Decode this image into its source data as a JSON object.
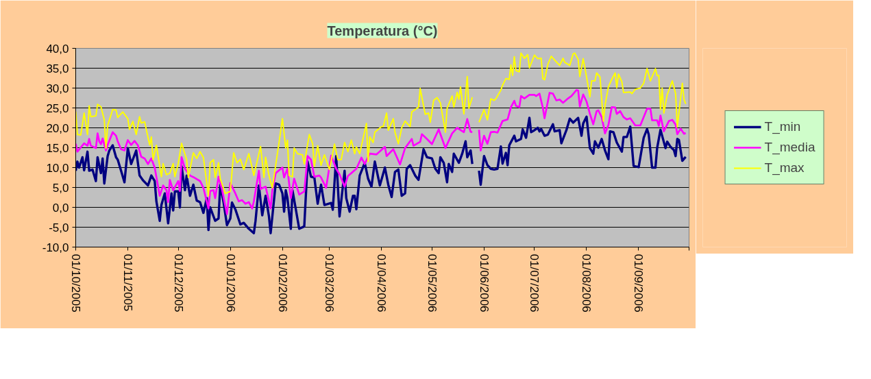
{
  "chart_data": {
    "type": "line",
    "title": "Temperatura (°C)",
    "legend": "right",
    "grid": "y",
    "xlim": [
      "2005-10-01",
      "2006-10-01"
    ],
    "xticks": [
      {
        "value": "2005-10-01",
        "label": "01/10/2005"
      },
      {
        "value": "2005-11-01",
        "label": "01/11/2005"
      },
      {
        "value": "2005-12-01",
        "label": "01/12/2005"
      },
      {
        "value": "2006-01-01",
        "label": "01/01/2006"
      },
      {
        "value": "2006-02-01",
        "label": "01/02/2006"
      },
      {
        "value": "2006-03-01",
        "label": "01/03/2006"
      },
      {
        "value": "2006-04-01",
        "label": "01/04/2006"
      },
      {
        "value": "2006-05-01",
        "label": "01/05/2006"
      },
      {
        "value": "2006-06-01",
        "label": "01/06/2006"
      },
      {
        "value": "2006-07-01",
        "label": "01/07/2006"
      },
      {
        "value": "2006-08-01",
        "label": "01/08/2006"
      },
      {
        "value": "2006-09-01",
        "label": "01/09/2006"
      },
      {
        "value": "2006-10-01",
        "label": null
      }
    ],
    "ylim": [
      -10,
      40
    ],
    "yticks": [
      {
        "value": -10,
        "label": "-10,0"
      },
      {
        "value": -5,
        "label": "-5,0"
      },
      {
        "value": 0,
        "label": "0,0"
      },
      {
        "value": 5,
        "label": "5,0"
      },
      {
        "value": 10,
        "label": "10,0"
      },
      {
        "value": 15,
        "label": "15,0"
      },
      {
        "value": 20,
        "label": "20,0"
      },
      {
        "value": 25,
        "label": "25,0"
      },
      {
        "value": 30,
        "label": "30,0"
      },
      {
        "value": 35,
        "label": "35,0"
      },
      {
        "value": 40,
        "label": "40,0"
      }
    ],
    "series": [
      {
        "name": "T_min",
        "color": "#000080",
        "x": [
          "2005-10-01",
          "2005-10-02",
          "2005-10-03",
          "2005-10-05",
          "2005-10-06",
          "2005-10-08",
          "2005-10-09",
          "2005-10-11",
          "2005-10-13",
          "2005-10-14",
          "2005-10-16",
          "2005-10-17",
          "2005-10-18",
          "2005-10-20",
          "2005-10-21",
          "2005-10-23",
          "2005-10-25",
          "2005-10-26",
          "2005-10-28",
          "2005-10-30",
          "2005-11-01",
          "2005-11-03",
          "2005-11-06",
          "2005-11-08",
          "2005-11-10",
          "2005-11-13",
          "2005-11-15",
          "2005-11-17",
          "2005-11-18",
          "2005-11-20",
          "2005-11-21",
          "2005-11-23",
          "2005-11-25",
          "2005-11-27",
          "2005-11-28",
          "2005-11-29",
          "2005-12-01",
          "2005-12-02",
          "2005-12-03",
          "2005-12-05",
          "2005-12-06",
          "2005-12-08",
          "2005-12-10",
          "2005-12-12",
          "2005-12-14",
          "2005-12-16",
          "2005-12-18",
          "2005-12-19",
          "2005-12-20",
          "2005-12-23",
          "2005-12-25",
          "2005-12-26",
          "2005-12-28",
          "2005-12-30",
          "2006-01-01",
          "2006-01-02",
          "2006-01-04",
          "2006-01-07",
          "2006-01-09",
          "2006-01-12",
          "2006-01-15",
          "2006-01-16",
          "2006-01-18",
          "2006-01-20",
          "2006-01-22",
          "2006-01-24",
          "2006-01-25",
          "2006-01-28",
          "2006-01-30",
          "2006-02-01",
          "2006-02-02",
          "2006-02-03",
          "2006-02-04",
          "2006-02-06",
          "2006-02-07",
          "2006-02-11",
          "2006-02-14",
          "2006-02-16",
          "2006-02-18",
          "2006-02-20",
          "2006-02-22",
          "2006-02-24",
          "2006-02-26",
          "2006-03-02",
          "2006-03-03",
          "2006-03-05",
          "2006-03-07",
          "2006-03-10",
          "2006-03-11",
          "2006-03-13",
          "2006-03-15",
          "2006-03-16",
          "2006-03-17",
          "2006-03-19",
          "2006-03-22",
          "2006-03-24",
          "2006-03-26",
          "2006-03-28",
          "2006-03-31",
          "2006-04-03",
          "2006-04-05",
          "2006-04-07",
          "2006-04-09",
          "2006-04-11",
          "2006-04-13",
          "2006-04-15",
          "2006-04-16",
          "2006-04-18",
          "2006-04-21",
          "2006-04-23",
          "2006-04-26",
          "2006-04-28",
          "2006-05-01",
          "2006-05-03",
          "2006-05-05",
          "2006-05-06",
          "2006-05-08",
          "2006-05-10",
          "2006-05-11",
          "2006-05-13",
          "2006-05-14",
          "2006-05-17",
          "2006-05-19",
          "2006-05-21",
          "2006-05-22",
          "2006-05-24",
          "2006-05-25",
          "2006-05-27",
          "2006-05-29",
          "2006-05-30",
          "2006-06-01",
          "2006-06-03",
          "2006-06-05",
          "2006-06-07",
          "2006-06-09",
          "2006-06-11",
          "2006-06-12",
          "2006-06-14",
          "2006-06-15",
          "2006-06-16",
          "2006-06-19",
          "2006-06-20",
          "2006-06-23",
          "2006-06-24",
          "2006-06-26",
          "2006-06-28",
          "2006-06-29",
          "2006-07-01",
          "2006-07-03",
          "2006-07-04",
          "2006-07-05",
          "2006-07-07",
          "2006-07-09",
          "2006-07-12",
          "2006-07-13",
          "2006-07-16",
          "2006-07-17",
          "2006-07-20",
          "2006-07-22",
          "2006-07-24",
          "2006-07-27",
          "2006-07-29",
          "2006-07-30",
          "2006-08-01",
          "2006-08-03",
          "2006-08-05",
          "2006-08-06",
          "2006-08-08",
          "2006-08-10",
          "2006-08-12",
          "2006-08-14",
          "2006-08-15",
          "2006-08-17",
          "2006-08-19",
          "2006-08-22",
          "2006-08-23",
          "2006-08-25",
          "2006-08-27",
          "2006-08-29",
          "2006-09-01",
          "2006-09-04",
          "2006-09-06",
          "2006-09-07",
          "2006-09-09",
          "2006-09-11",
          "2006-09-12",
          "2006-09-14",
          "2006-09-17",
          "2006-09-18",
          "2006-09-20",
          "2006-09-22",
          "2006-09-23",
          "2006-09-24",
          "2006-09-25",
          "2006-09-27",
          "2006-09-29"
        ],
        "values": [
          9.2,
          11.5,
          10,
          12.6,
          9.3,
          14,
          9.2,
          9.5,
          6.6,
          12.6,
          8.6,
          12.3,
          6,
          12.9,
          14.3,
          15.6,
          12.6,
          12,
          9.2,
          6.3,
          14.9,
          10.9,
          14.3,
          8,
          6.8,
          5.5,
          8,
          6.6,
          1.5,
          -3.4,
          0.6,
          3.5,
          -4,
          3.5,
          -0.8,
          4,
          4,
          0,
          10.3,
          4.3,
          8,
          2.9,
          5.7,
          1.7,
          1.3,
          -1.4,
          2.3,
          -5.7,
          0,
          -3.4,
          -2.8,
          5.7,
          1.2,
          -4.5,
          -2.8,
          1.2,
          -0.5,
          -4.3,
          -3.9,
          -5.4,
          -6.5,
          -3.4,
          5.5,
          -2,
          2.9,
          -2.3,
          -6.5,
          6,
          5.7,
          3.5,
          -1.1,
          4.3,
          2.3,
          -5.4,
          4.3,
          -5.4,
          -4.8,
          11.5,
          7.7,
          7.5,
          0.9,
          5.7,
          0.6,
          1.1,
          -0.6,
          12.9,
          -2.3,
          9.2,
          2.3,
          -1.1,
          2.9,
          2.9,
          -0.5,
          8,
          11.2,
          7.2,
          5.2,
          11.5,
          5.5,
          10,
          5.7,
          2.6,
          8.9,
          9.5,
          2.9,
          3.5,
          9.7,
          10.6,
          8,
          6.9,
          14.6,
          12.6,
          12.3,
          9.7,
          8.6,
          12.6,
          11.2,
          6.3,
          10.9,
          8.9,
          13.5,
          11.2,
          13.5,
          16.6,
          12.6,
          14.3,
          10.9,
          null,
          9.2,
          5.7,
          12.9,
          10.6,
          9.7,
          9.5,
          9.7,
          15.3,
          11,
          13.7,
          10.6,
          15.6,
          18,
          16.6,
          17.2,
          19.6,
          17.5,
          22.5,
          18.9,
          19.4,
          20,
          19.1,
          19.7,
          18,
          18.3,
          20.9,
          19.1,
          19.4,
          16.1,
          19.4,
          22.3,
          21.3,
          22.5,
          18,
          21.1,
          22.8,
          14.9,
          13.5,
          16.6,
          15,
          17.2,
          14.3,
          12.1,
          19.1,
          18.9,
          16.3,
          14,
          17.7,
          17.7,
          20.3,
          10.4,
          10.1,
          17.5,
          19.7,
          18.3,
          10,
          10,
          14.9,
          19.5,
          14.9,
          16.5,
          15.2,
          14.4,
          12.9,
          17.2,
          16.9,
          11.7,
          12.7
        ]
      },
      {
        "name": "T_media",
        "color": "#ff00ff",
        "x": [
          "2005-10-01",
          "2005-10-02",
          "2005-10-06",
          "2005-10-08",
          "2005-10-09",
          "2005-10-10",
          "2005-10-13",
          "2005-10-14",
          "2005-10-15",
          "2005-10-16",
          "2005-10-17",
          "2005-10-19",
          "2005-10-20",
          "2005-10-23",
          "2005-10-25",
          "2005-10-26",
          "2005-10-28",
          "2005-10-30",
          "2005-11-01",
          "2005-11-03",
          "2005-11-05",
          "2005-11-07",
          "2005-11-09",
          "2005-11-11",
          "2005-11-13",
          "2005-11-15",
          "2005-11-17",
          "2005-11-20",
          "2005-11-22",
          "2005-11-24",
          "2005-11-25",
          "2005-11-26",
          "2005-11-28",
          "2005-12-01",
          "2005-12-02",
          "2005-12-03",
          "2005-12-05",
          "2005-12-08",
          "2005-12-10",
          "2005-12-14",
          "2005-12-16",
          "2005-12-19",
          "2005-12-20",
          "2005-12-22",
          "2005-12-23",
          "2005-12-25",
          "2005-12-27",
          "2005-12-30",
          "2006-01-01",
          "2006-01-04",
          "2006-01-06",
          "2006-01-08",
          "2006-01-10",
          "2006-01-12",
          "2006-01-14",
          "2006-01-15",
          "2006-01-18",
          "2006-01-19",
          "2006-01-22",
          "2006-01-25",
          "2006-01-26",
          "2006-01-28",
          "2006-02-01",
          "2006-02-02",
          "2006-02-04",
          "2006-02-06",
          "2006-02-08",
          "2006-02-11",
          "2006-02-14",
          "2006-02-16",
          "2006-02-18",
          "2006-02-20",
          "2006-02-23",
          "2006-02-24",
          "2006-02-27",
          "2006-03-02",
          "2006-03-05",
          "2006-03-07",
          "2006-03-10",
          "2006-03-12",
          "2006-03-14",
          "2006-03-17",
          "2006-03-20",
          "2006-03-22",
          "2006-03-25",
          "2006-03-29",
          "2006-04-03",
          "2006-04-04",
          "2006-04-08",
          "2006-04-12",
          "2006-04-15",
          "2006-04-19",
          "2006-04-20",
          "2006-04-24",
          "2006-04-25",
          "2006-04-28",
          "2006-05-01",
          "2006-05-05",
          "2006-05-09",
          "2006-05-13",
          "2006-05-16",
          "2006-05-20",
          "2006-05-22",
          "2006-05-24",
          "2006-05-25",
          "2006-05-27",
          "2006-05-29",
          "2006-05-30",
          "2006-06-01",
          "2006-06-03",
          "2006-06-05",
          "2006-06-07",
          "2006-06-09",
          "2006-06-12",
          "2006-06-15",
          "2006-06-17",
          "2006-06-19",
          "2006-06-20",
          "2006-06-22",
          "2006-06-23",
          "2006-06-25",
          "2006-06-28",
          "2006-07-01",
          "2006-07-02",
          "2006-07-04",
          "2006-07-06",
          "2006-07-07",
          "2006-07-10",
          "2006-07-12",
          "2006-07-14",
          "2006-07-16",
          "2006-07-18",
          "2006-07-21",
          "2006-07-23",
          "2006-07-26",
          "2006-07-27",
          "2006-07-28",
          "2006-07-30",
          "2006-08-01",
          "2006-08-03",
          "2006-08-05",
          "2006-08-07",
          "2006-08-08",
          "2006-08-10",
          "2006-08-12",
          "2006-08-14",
          "2006-08-16",
          "2006-08-18",
          "2006-08-19",
          "2006-08-21",
          "2006-08-23",
          "2006-08-25",
          "2006-08-27",
          "2006-08-30",
          "2006-09-02",
          "2006-09-06",
          "2006-09-08",
          "2006-09-09",
          "2006-09-12",
          "2006-09-13",
          "2006-09-14",
          "2006-09-16",
          "2006-09-19",
          "2006-09-21",
          "2006-09-23",
          "2006-09-24",
          "2006-09-26",
          "2006-09-28",
          "2006-09-29"
        ],
        "values": [
          16,
          14,
          16.1,
          15.5,
          17.2,
          15.5,
          14.9,
          18.6,
          16.6,
          15.9,
          17.3,
          14.3,
          15.7,
          18.9,
          18,
          16.6,
          14.6,
          14.3,
          16.9,
          15.7,
          16.7,
          15.6,
          12.7,
          12.3,
          10.9,
          12.3,
          10,
          2.9,
          5.5,
          4.3,
          1.3,
          6.9,
          4.3,
          6.6,
          4.1,
          12.6,
          9.7,
          8,
          7.6,
          6.6,
          4.9,
          -0.3,
          4.1,
          4.3,
          2.3,
          7.7,
          4.6,
          -1.7,
          6.1,
          3.5,
          1.5,
          1.8,
          0.9,
          1.3,
          -0.3,
          1.5,
          9.2,
          4.6,
          5.2,
          -0.3,
          4.3,
          8.6,
          10,
          7.5,
          9.7,
          2.3,
          7.2,
          3.2,
          4,
          12.9,
          12,
          7.7,
          8,
          7.5,
          4.9,
          13,
          9.7,
          8.3,
          5.2,
          7.9,
          8.6,
          9.7,
          12.5,
          10.9,
          13.5,
          13.3,
          15.2,
          12.9,
          14.6,
          10.8,
          14.9,
          17.2,
          15.5,
          16.5,
          18.4,
          17.2,
          15.9,
          19.6,
          14.9,
          18.6,
          20,
          18.9,
          22.2,
          19,
          18.9,
          null,
          19.5,
          14.3,
          18,
          16,
          18.9,
          19,
          18.8,
          21.7,
          22.1,
          25.2,
          26.8,
          25.5,
          25.2,
          28,
          27.4,
          28.3,
          28.3,
          28,
          28.6,
          25,
          22.4,
          28.8,
          28.6,
          26.9,
          27.1,
          26.3,
          27.4,
          28,
          29.5,
          29.4,
          25.4,
          28.4,
          26.6,
          23.5,
          20.9,
          24.2,
          24.4,
          22.7,
          18.6,
          20.7,
          25.2,
          25.1,
          23.5,
          24.2,
          22.7,
          22.1,
          22.4,
          20.6,
          20.6,
          24.8,
          24.8,
          21.9,
          21.9,
          20.5,
          23.1,
          19.1,
          21.7,
          22,
          20.8,
          18.4,
          19.8,
          18.5,
          18.7
        ]
      },
      {
        "name": "T_max",
        "color": "#ffff00",
        "x": [
          "2005-10-01",
          "2005-10-02",
          "2005-10-04",
          "2005-10-06",
          "2005-10-08",
          "2005-10-09",
          "2005-10-10",
          "2005-10-13",
          "2005-10-14",
          "2005-10-16",
          "2005-10-18",
          "2005-10-19",
          "2005-10-20",
          "2005-10-23",
          "2005-10-25",
          "2005-10-26",
          "2005-10-29",
          "2005-11-01",
          "2005-11-02",
          "2005-11-04",
          "2005-11-06",
          "2005-11-08",
          "2005-11-09",
          "2005-11-11",
          "2005-11-14",
          "2005-11-15",
          "2005-11-16",
          "2005-11-18",
          "2005-11-21",
          "2005-11-22",
          "2005-11-24",
          "2005-11-26",
          "2005-11-28",
          "2005-11-29",
          "2005-12-01",
          "2005-12-03",
          "2005-12-06",
          "2005-12-07",
          "2005-12-10",
          "2005-12-12",
          "2005-12-14",
          "2005-12-16",
          "2005-12-19",
          "2005-12-20",
          "2005-12-22",
          "2005-12-23",
          "2005-12-25",
          "2005-12-26",
          "2005-12-29",
          "2006-01-01",
          "2006-01-03",
          "2006-01-05",
          "2006-01-07",
          "2006-01-09",
          "2006-01-12",
          "2006-01-14",
          "2006-01-15",
          "2006-01-19",
          "2006-01-21",
          "2006-01-22",
          "2006-01-24",
          "2006-01-26",
          "2006-01-30",
          "2006-02-01",
          "2006-02-03",
          "2006-02-04",
          "2006-02-05",
          "2006-02-07",
          "2006-02-08",
          "2006-02-10",
          "2006-02-13",
          "2006-02-14",
          "2006-02-17",
          "2006-02-19",
          "2006-02-20",
          "2006-02-22",
          "2006-02-24",
          "2006-02-26",
          "2006-03-01",
          "2006-03-04",
          "2006-03-06",
          "2006-03-08",
          "2006-03-10",
          "2006-03-12",
          "2006-03-14",
          "2006-03-16",
          "2006-03-17",
          "2006-03-19",
          "2006-03-23",
          "2006-03-24",
          "2006-03-25",
          "2006-03-27",
          "2006-03-28",
          "2006-04-01",
          "2006-04-02",
          "2006-04-04",
          "2006-04-05",
          "2006-04-08",
          "2006-04-09",
          "2006-04-11",
          "2006-04-13",
          "2006-04-15",
          "2006-04-18",
          "2006-04-19",
          "2006-04-23",
          "2006-04-24",
          "2006-04-27",
          "2006-04-29",
          "2006-04-30",
          "2006-05-02",
          "2006-05-04",
          "2006-05-06",
          "2006-05-09",
          "2006-05-10",
          "2006-05-13",
          "2006-05-14",
          "2006-05-16",
          "2006-05-17",
          "2006-05-18",
          "2006-05-20",
          "2006-05-22",
          "2006-05-23",
          "2006-05-25",
          "2006-05-27",
          "2006-05-29",
          "2006-06-01",
          "2006-06-03",
          "2006-06-05",
          "2006-06-07",
          "2006-06-08",
          "2006-06-11",
          "2006-06-12",
          "2006-06-14",
          "2006-06-16",
          "2006-06-17",
          "2006-06-18",
          "2006-06-19",
          "2006-06-20",
          "2006-06-22",
          "2006-06-23",
          "2006-06-25",
          "2006-06-27",
          "2006-06-28",
          "2006-07-01",
          "2006-07-03",
          "2006-07-05",
          "2006-07-06",
          "2006-07-07",
          "2006-07-09",
          "2006-07-11",
          "2006-07-14",
          "2006-07-16",
          "2006-07-18",
          "2006-07-19",
          "2006-07-22",
          "2006-07-24",
          "2006-07-25",
          "2006-07-27",
          "2006-07-28",
          "2006-07-30",
          "2006-08-01",
          "2006-08-03",
          "2006-08-04",
          "2006-08-06",
          "2006-08-07",
          "2006-08-09",
          "2006-08-11",
          "2006-08-12",
          "2006-08-14",
          "2006-08-16",
          "2006-08-18",
          "2006-08-19",
          "2006-08-20",
          "2006-08-22",
          "2006-08-23",
          "2006-08-27",
          "2006-08-28",
          "2006-08-30",
          "2006-09-02",
          "2006-09-04",
          "2006-09-06",
          "2006-09-08",
          "2006-09-11",
          "2006-09-12",
          "2006-09-13",
          "2006-09-14",
          "2006-09-15",
          "2006-09-16",
          "2006-09-18",
          "2006-09-21",
          "2006-09-23",
          "2006-09-24",
          "2006-09-27",
          "2006-09-28",
          "2006-09-29"
        ],
        "values": [
          24.1,
          18.3,
          18.2,
          23.7,
          18.3,
          25.5,
          22.8,
          23,
          25.9,
          25.3,
          22,
          14.9,
          20.6,
          24.6,
          24.5,
          22.6,
          24,
          22.3,
          19.6,
          21.6,
          18.3,
          22.8,
          21.2,
          21.5,
          15.7,
          17.7,
          12,
          15.6,
          7.7,
          11,
          8.2,
          8.6,
          11,
          7.7,
          11,
          16.1,
          12,
          7.5,
          13.7,
          12.3,
          14,
          12.5,
          2.9,
          11.2,
          12,
          7.5,
          11.2,
          7.2,
          3.5,
          4,
          13.7,
          11.2,
          12.1,
          9.5,
          13.5,
          10,
          8,
          15.3,
          7.5,
          12.6,
          8,
          4.9,
          16.3,
          22.3,
          14.9,
          16.9,
          8,
          7.7,
          14.9,
          13.5,
          13.2,
          10.9,
          18.3,
          16,
          10.3,
          15.5,
          10.6,
          13.2,
          9.5,
          15.9,
          12,
          12,
          16.3,
          14,
          16.9,
          13.5,
          15.2,
          13.5,
          21.1,
          11.5,
          17.7,
          16.3,
          18.9,
          20.3,
          20.3,
          23.7,
          19.4,
          22.3,
          18.9,
          16,
          20,
          21.7,
          20.3,
          24,
          25.2,
          29.9,
          23.4,
          23.7,
          21.4,
          26.9,
          27.6,
          26.3,
          18.9,
          24.9,
          28,
          25.2,
          28.9,
          27.2,
          30.3,
          23.5,
          32.9,
          24.9,
          27.7,
          null,
          21.4,
          24.6,
          22,
          27.3,
          26.9,
          27.3,
          29.5,
          30.7,
          32.4,
          32.2,
          35.8,
          33.2,
          37.9,
          34.4,
          34.1,
          38.8,
          37.5,
          38.4,
          35.1,
          38.3,
          37.4,
          37.5,
          32.4,
          32.1,
          36,
          38,
          36.6,
          35.7,
          37.5,
          36.5,
          35.7,
          38.6,
          38.8,
          37.2,
          32.9,
          37.4,
          32.8,
          27.8,
          31.8,
          31.8,
          33.8,
          32.8,
          21.7,
          25.7,
          30.3,
          32.2,
          33.8,
          30.1,
          33.5,
          31.6,
          28.9,
          29,
          28.6,
          29.7,
          30,
          31.2,
          34.9,
          31.8,
          34.9,
          33.1,
          33.2,
          24.6,
          30,
          23.7,
          28.3,
          31.8,
          28.6,
          20.2,
          31.2,
          27.2,
          26
        ]
      }
    ]
  }
}
